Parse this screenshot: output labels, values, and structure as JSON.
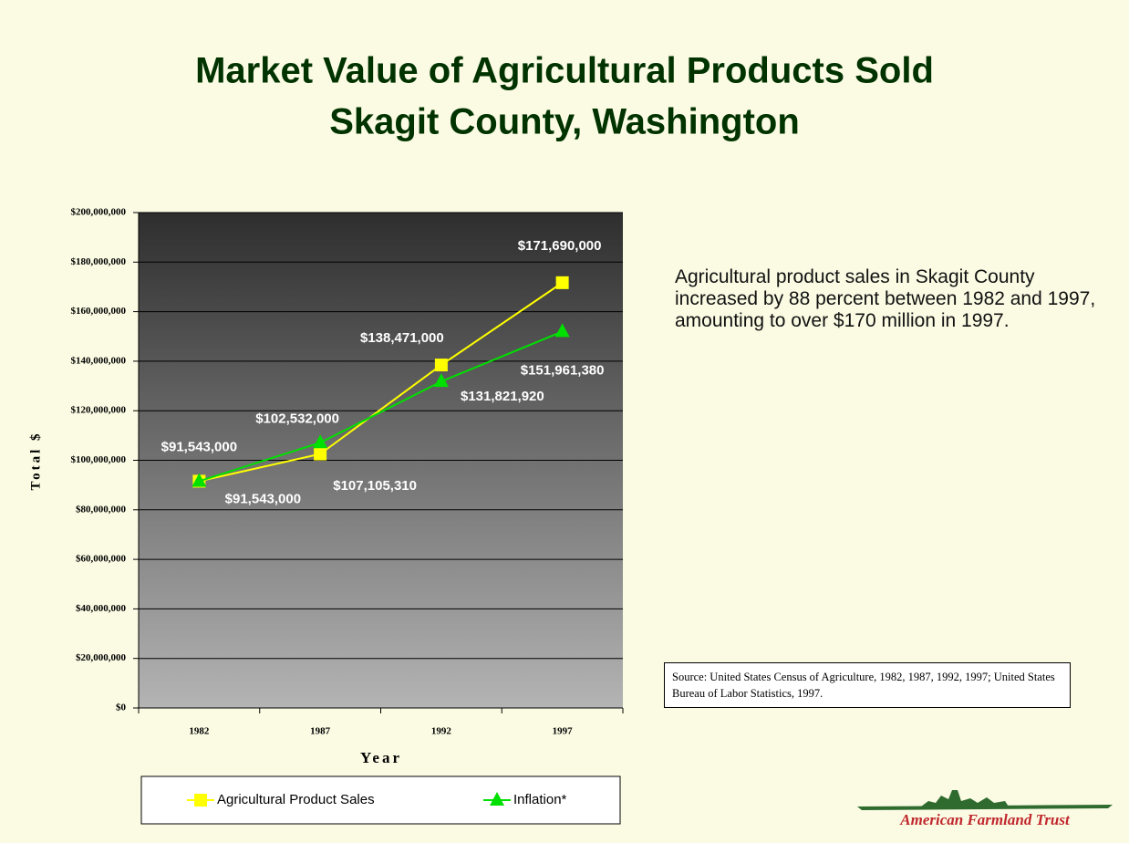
{
  "chart_data": {
    "type": "line",
    "title": "Market Value of Agricultural Products Sold",
    "subtitle": "Skagit County, Washington",
    "x_label": "Year",
    "y_label": "Total $",
    "categories": [
      "1982",
      "1987",
      "1992",
      "1997"
    ],
    "series": [
      {
        "name": "Agricultural Product Sales",
        "color": "#ffff00",
        "marker": "square",
        "values": [
          91543000,
          102532000,
          138471000,
          171690000
        ],
        "value_labels": [
          "$91,543,000",
          "$102,532,000",
          "$138,471,000",
          "$171,690,000"
        ]
      },
      {
        "name": "Inflation*",
        "color": "#00e000",
        "marker": "triangle",
        "values": [
          91543000,
          107105310,
          131821920,
          151961380
        ],
        "value_labels": [
          "$91,543,000",
          "$107,105,310",
          "$131,821,920",
          "$151,961,380"
        ]
      }
    ],
    "ylim": [
      0,
      200000000
    ],
    "yticks": [
      {
        "value": 0,
        "label": "$0"
      },
      {
        "value": 20000000,
        "label": "$20,000,000"
      },
      {
        "value": 40000000,
        "label": "$40,000,000"
      },
      {
        "value": 60000000,
        "label": "$60,000,000"
      },
      {
        "value": 80000000,
        "label": "$80,000,000"
      },
      {
        "value": 100000000,
        "label": "$100,000,000"
      },
      {
        "value": 120000000,
        "label": "$120,000,000"
      },
      {
        "value": 140000000,
        "label": "$140,000,000"
      },
      {
        "value": 160000000,
        "label": "$160,000,000"
      },
      {
        "value": 180000000,
        "label": "$180,000,000"
      },
      {
        "value": 200000000,
        "label": "$200,000,000"
      }
    ],
    "grid": true,
    "legend": "bottom",
    "annotation": "Agricultural product sales in Skagit County increased by 88 percent between 1982 and 1997, amounting to over $170 million in 1997.",
    "source": "Source: United States Census of Agriculture, 1982, 1987, 1992, 1997; United States Bureau of Labor Statistics, 1997."
  },
  "logo": {
    "text": "American Farmland Trust"
  }
}
